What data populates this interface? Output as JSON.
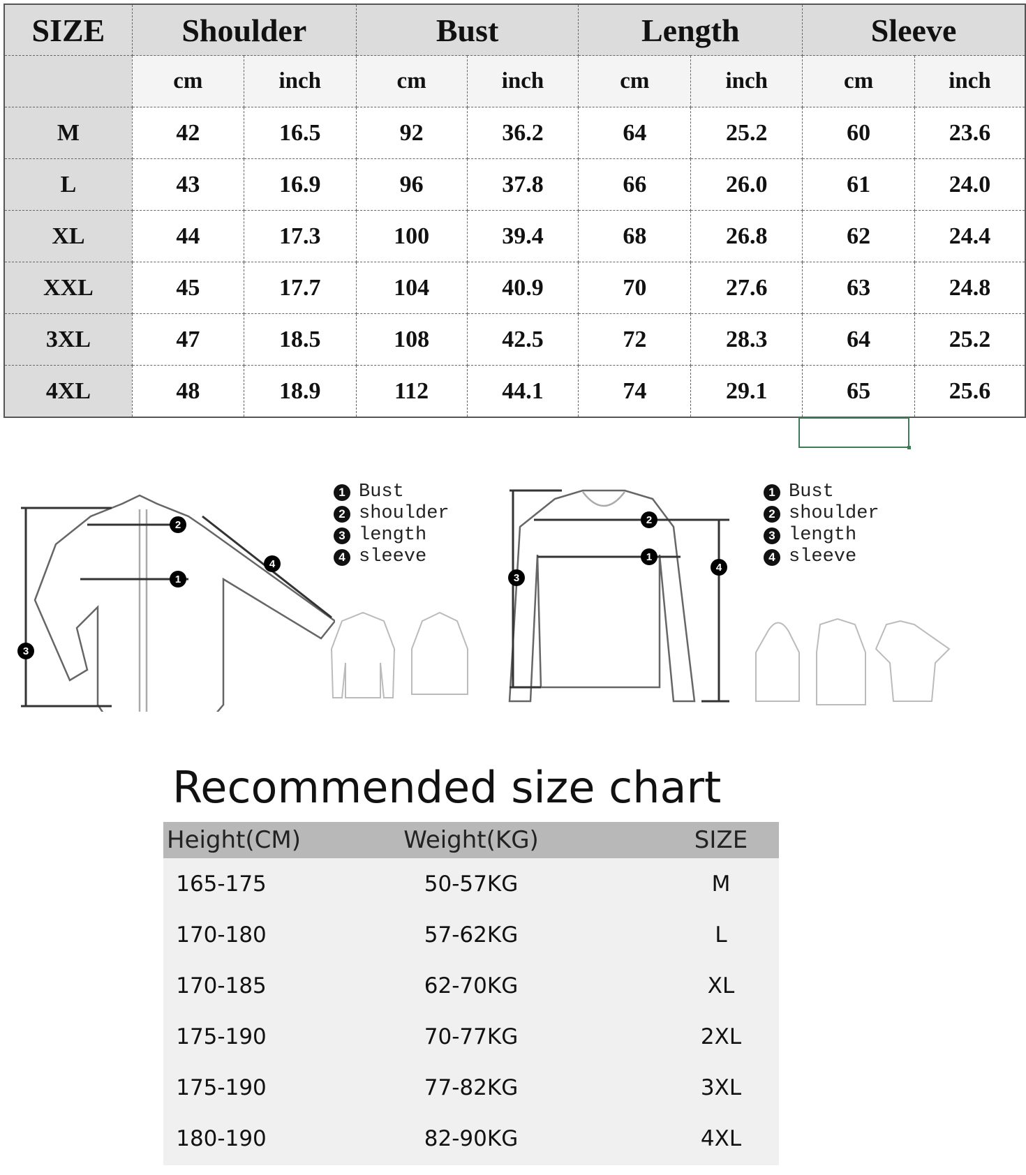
{
  "size_chart": {
    "headers": [
      "SIZE",
      "Shoulder",
      "Bust",
      "Length",
      "Sleeve"
    ],
    "units": [
      "cm",
      "inch",
      "cm",
      "inch",
      "cm",
      "inch",
      "cm",
      "inch"
    ],
    "rows": [
      {
        "size": "M",
        "values": [
          "42",
          "16.5",
          "92",
          "36.2",
          "64",
          "25.2",
          "60",
          "23.6"
        ]
      },
      {
        "size": "L",
        "values": [
          "43",
          "16.9",
          "96",
          "37.8",
          "66",
          "26.0",
          "61",
          "24.0"
        ]
      },
      {
        "size": "XL",
        "values": [
          "44",
          "17.3",
          "100",
          "39.4",
          "68",
          "26.8",
          "62",
          "24.4"
        ]
      },
      {
        "size": "XXL",
        "values": [
          "45",
          "17.7",
          "104",
          "40.9",
          "70",
          "27.6",
          "63",
          "24.8"
        ]
      },
      {
        "size": "3XL",
        "values": [
          "47",
          "18.5",
          "108",
          "42.5",
          "72",
          "28.3",
          "64",
          "25.2"
        ]
      },
      {
        "size": "4XL",
        "values": [
          "48",
          "18.9",
          "112",
          "44.1",
          "74",
          "29.1",
          "65",
          "25.6"
        ]
      }
    ]
  },
  "legend": [
    {
      "num": "1",
      "label": "Bust"
    },
    {
      "num": "2",
      "label": "shoulder"
    },
    {
      "num": "3",
      "label": "length"
    },
    {
      "num": "4",
      "label": "sleeve"
    }
  ],
  "recommended": {
    "title": "Recommended size chart",
    "headers": [
      "Height(CM)",
      "Weight(KG)",
      "SIZE"
    ],
    "rows": [
      [
        "165-175",
        "50-57KG",
        "M"
      ],
      [
        "170-180",
        "57-62KG",
        "L"
      ],
      [
        "170-185",
        "62-70KG",
        "XL"
      ],
      [
        "175-190",
        "70-77KG",
        "2XL"
      ],
      [
        "175-190",
        "77-82KG",
        "3XL"
      ],
      [
        "180-190",
        "82-90KG",
        "4XL"
      ]
    ]
  },
  "colors": {
    "selection": "#3f7a56",
    "header_bg": "#dcdcdc",
    "rec_header_bg": "#b8b8b8"
  }
}
